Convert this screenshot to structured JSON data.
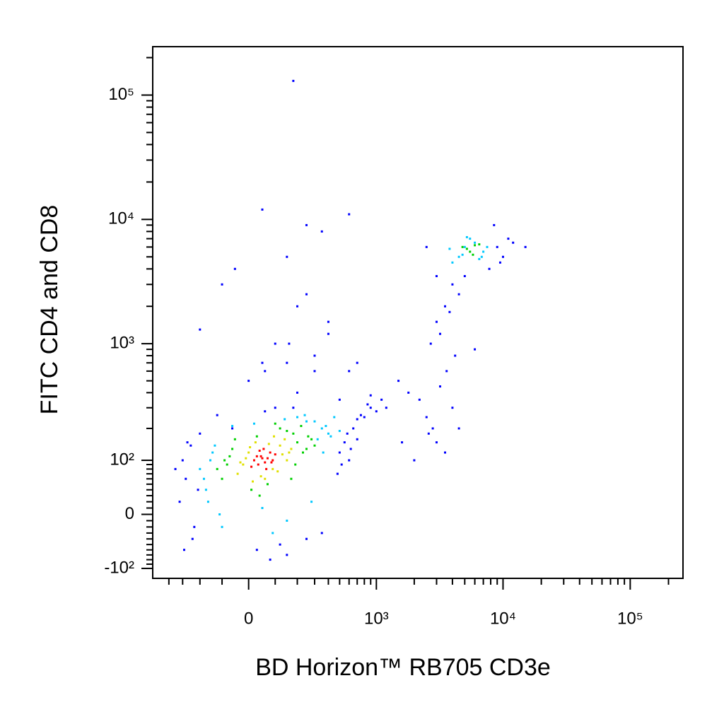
{
  "chart_data": {
    "type": "scatter",
    "x_label": "BD Horizon™ RB705 CD3e",
    "y_label": "FITC CD4 and CD8",
    "xscale": "asinh",
    "yscale": "asinh",
    "xlim": [
      -550,
      260000
    ],
    "ylim": [
      -126,
      245000
    ],
    "xticks": [
      0,
      {
        "value": 1000,
        "label": "10³"
      },
      {
        "value": 10000,
        "label": "10⁴"
      },
      {
        "value": 100000,
        "label": "10⁵"
      }
    ],
    "yticks": [
      {
        "value": -100,
        "label": "-10²"
      },
      0,
      {
        "value": 100,
        "label": "10²"
      },
      {
        "value": 1000,
        "label": "10³"
      },
      {
        "value": 10000,
        "label": "10⁴"
      },
      {
        "value": 100000,
        "label": "10⁵"
      }
    ],
    "xminorticks": [
      -400,
      -300,
      -200,
      -100,
      100,
      200,
      300,
      400,
      500,
      600,
      700,
      800,
      900,
      2000,
      3000,
      4000,
      5000,
      6000,
      7000,
      8000,
      9000,
      20000,
      30000,
      40000,
      50000,
      60000,
      70000,
      80000,
      90000,
      200000
    ],
    "yminorticks": [
      -90,
      -80,
      -70,
      -60,
      -50,
      -40,
      -30,
      -20,
      -10,
      10,
      20,
      30,
      40,
      50,
      60,
      70,
      80,
      90,
      200,
      300,
      400,
      500,
      600,
      700,
      800,
      900,
      2000,
      3000,
      4000,
      5000,
      6000,
      7000,
      8000,
      9000,
      20000,
      30000,
      40000,
      50000,
      60000,
      70000,
      80000,
      90000,
      200000
    ],
    "series": [
      {
        "color": "#0000ff",
        "x": [
          -300,
          -280,
          -250,
          -320,
          -230,
          -350,
          -270,
          -210,
          500,
          550,
          600,
          650,
          700,
          520,
          580,
          480,
          620,
          -240,
          -290,
          -200,
          30,
          80,
          150,
          -60,
          120,
          250,
          350,
          60,
          -120,
          180,
          800,
          900,
          1000,
          1100,
          900,
          750,
          700,
          850,
          1500,
          1800,
          2200,
          2500,
          3000,
          3500,
          2800,
          4000,
          3200,
          2600,
          3000,
          3500,
          4000,
          4500,
          5000,
          3200,
          3800,
          2700,
          4200,
          3600,
          9000,
          10000,
          11000,
          8500,
          12000,
          15000,
          3000,
          2500,
          9500,
          7800,
          0,
          100,
          200,
          300,
          400,
          600,
          -100,
          50,
          150,
          250,
          200,
          400,
          600,
          150,
          300,
          700,
          -50,
          100,
          500,
          250,
          -200,
          50,
          350,
          1200,
          1600,
          2000,
          4500,
          6000,
          60,
          160,
          180
        ],
        "y": [
          100,
          60,
          140,
          20,
          -20,
          80,
          150,
          40,
          120,
          150,
          100,
          200,
          160,
          90,
          180,
          70,
          130,
          -40,
          -60,
          180,
          -60,
          -80,
          -70,
          200,
          -50,
          -40,
          -30,
          280,
          260,
          300,
          250,
          300,
          280,
          350,
          380,
          260,
          240,
          320,
          500,
          400,
          350,
          250,
          150,
          120,
          200,
          300,
          450,
          180,
          1500,
          2000,
          3000,
          2500,
          3500,
          1200,
          1800,
          1000,
          800,
          600,
          6000,
          5000,
          7000,
          9000,
          6500,
          6000,
          3500,
          6000,
          4500,
          4000,
          500,
          1000,
          2000,
          800,
          1500,
          600,
          3000,
          12000,
          700,
          9000,
          400,
          1200,
          11000,
          5000,
          600,
          700,
          4000,
          300,
          350,
          2500,
          1300,
          700,
          8000,
          300,
          150,
          100,
          200,
          900,
          600,
          1000,
          130000
        ]
      },
      {
        "color": "#00c8ff",
        "x": [
          -150,
          -180,
          -130,
          350,
          400,
          300,
          -160,
          -110,
          320,
          380,
          450,
          -140,
          200,
          250,
          -200,
          50,
          150,
          280,
          -170,
          420,
          4500,
          5000,
          6000,
          7000,
          5500,
          4000,
          6500,
          5200,
          7500,
          4800,
          3800,
          6800,
          90,
          -100,
          360,
          140,
          240,
          -60,
          500,
          20
        ],
        "y": [
          100,
          60,
          140,
          200,
          180,
          230,
          20,
          0,
          160,
          210,
          250,
          120,
          250,
          230,
          80,
          10,
          -10,
          20,
          40,
          170,
          5000,
          6000,
          6500,
          5500,
          7000,
          4500,
          4800,
          7200,
          6000,
          5200,
          5800,
          5000,
          -30,
          -20,
          120,
          240,
          260,
          210,
          190,
          220
        ]
      },
      {
        "color": "#00d000",
        "x": [
          -80,
          -60,
          -100,
          200,
          230,
          180,
          -50,
          260,
          10,
          120,
          300,
          -90,
          40,
          150,
          220,
          -120,
          70,
          190,
          280,
          -70,
          100,
          250,
          5200,
          6000,
          5500,
          4800,
          6500,
          5800,
          30,
          170
        ],
        "y": [
          90,
          130,
          60,
          150,
          120,
          180,
          160,
          170,
          40,
          200,
          140,
          100,
          30,
          190,
          210,
          80,
          50,
          90,
          160,
          110,
          220,
          130,
          5800,
          6200,
          5500,
          6000,
          6300,
          5200,
          170,
          60
        ]
      },
      {
        "color": "#e0e000",
        "x": [
          -20,
          0,
          120,
          150,
          -40,
          25,
          90,
          140,
          170,
          60,
          -10,
          110,
          5,
          75,
          130,
          -30,
          45,
          160,
          95,
          15
        ],
        "y": [
          90,
          120,
          140,
          100,
          70,
          150,
          80,
          160,
          130,
          60,
          105,
          75,
          135,
          145,
          115,
          95,
          65,
          120,
          170,
          55
        ]
      },
      {
        "color": "#ff0000",
        "x": [
          20,
          45,
          60,
          80,
          35,
          70,
          100,
          55,
          10,
          90,
          40,
          65,
          30,
          85,
          50
        ],
        "y": [
          100,
          110,
          95,
          120,
          90,
          105,
          115,
          130,
          85,
          100,
          125,
          80,
          110,
          95,
          105
        ]
      }
    ]
  }
}
